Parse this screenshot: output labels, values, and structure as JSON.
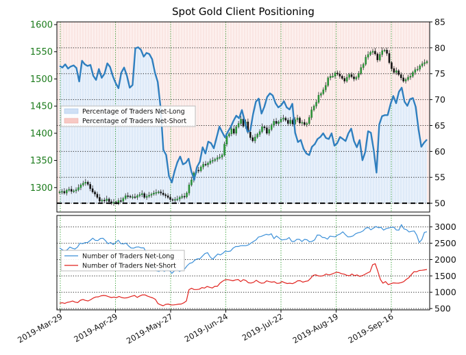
{
  "chart_data": [
    {
      "type": "line",
      "title": "Spot Gold Client Positioning",
      "left_axis": {
        "ticks": [
          1300,
          1350,
          1400,
          1450,
          1500,
          1550,
          1600
        ],
        "range": [
          1255,
          1605
        ],
        "color": "#1a7a1a"
      },
      "right_axis": {
        "ticks": [
          50,
          55,
          60,
          65,
          70,
          75,
          80,
          85
        ],
        "range": [
          48.3,
          85
        ]
      },
      "x_labels": [
        "2019-Mar-29",
        "2019-Apr-29",
        "2019-May-27",
        "2019-Jun-24",
        "2019-Jul-22",
        "2019-Aug-19",
        "2019-Sep-16"
      ],
      "legend": {
        "position": "upper-left",
        "entries": [
          "Percentage of Traders Net-Long",
          "Percentage of Traders Net-Short"
        ]
      },
      "reference_line": 50,
      "grid": true,
      "series": [
        {
          "name": "Percentage of Traders Net-Long",
          "color": "#2f7fbf",
          "values": [
            76.5,
            76.2,
            76.8,
            76.0,
            76.4,
            76.6,
            76.1,
            73.5,
            77.5,
            76.8,
            76.5,
            76.7,
            74.6,
            73.8,
            75.9,
            74.2,
            75.0,
            77.0,
            76.3,
            74.5,
            73.2,
            72.2,
            75.2,
            76.2,
            74.6,
            72.3,
            72.8,
            79.9,
            80.1,
            79.6,
            78.3,
            79.0,
            78.8,
            77.8,
            75.2,
            73.4,
            68.5,
            60.3,
            59.3,
            55.2,
            54.0,
            56.2,
            57.9,
            59.0,
            57.5,
            57.8,
            58.6,
            56.1,
            54.5,
            57.0,
            58.0,
            60.8,
            59.6,
            61.9,
            61.6,
            60.6,
            62.7,
            64.8,
            63.7,
            62.7,
            63.8,
            64.7,
            65.9,
            66.9,
            66.4,
            68.0,
            65.9,
            63.8,
            64.0,
            67.2,
            69.6,
            70.2,
            67.3,
            68.6,
            70.5,
            71.2,
            70.8,
            69.3,
            68.5,
            68.9,
            69.7,
            68.5,
            68.1,
            69.2,
            63.6,
            61.8,
            62.2,
            60.5,
            59.6,
            59.3,
            60.9,
            61.4,
            62.4,
            62.8,
            63.5,
            62.6,
            62.4,
            63.5,
            61.1,
            61.6,
            62.8,
            62.4,
            62.0,
            63.5,
            64.4,
            62.0,
            60.8,
            62.2,
            58.3,
            59.9,
            63.9,
            63.6,
            60.3,
            55.9,
            65.2,
            66.8,
            67.0,
            67.0,
            69.1,
            70.7,
            69.3,
            71.5,
            72.3,
            69.6,
            68.8,
            70.1,
            70.3,
            68.6,
            64.3,
            60.9,
            61.7,
            62.3
          ],
          "axis": "right"
        },
        {
          "name": "Spot Gold price (candlesticks)",
          "color": "#2e9a3b",
          "axis": "left",
          "values": [
            1292,
            1293,
            1290,
            1295,
            1297,
            1293,
            1294,
            1296,
            1300,
            1305,
            1308,
            1310,
            1306,
            1298,
            1292,
            1288,
            1282,
            1275,
            1277,
            1276,
            1279,
            1274,
            1271,
            1273,
            1272,
            1276,
            1275,
            1280,
            1285,
            1284,
            1283,
            1283,
            1282,
            1285,
            1287,
            1289,
            1282,
            1284,
            1286,
            1288,
            1290,
            1291,
            1292,
            1290,
            1287,
            1285,
            1282,
            1278,
            1277,
            1278,
            1279,
            1282,
            1284,
            1283,
            1290,
            1305,
            1314,
            1327,
            1332,
            1331,
            1338,
            1343,
            1342,
            1345,
            1349,
            1350,
            1352,
            1355,
            1356,
            1360,
            1380,
            1395,
            1399,
            1408,
            1400,
            1412,
            1418,
            1426,
            1413,
            1421,
            1402,
            1392,
            1386,
            1393,
            1398,
            1403,
            1412,
            1410,
            1400,
            1407,
            1415,
            1422,
            1418,
            1421,
            1426,
            1428,
            1424,
            1418,
            1424,
            1417,
            1425,
            1428,
            1419,
            1420,
            1416,
            1418,
            1429,
            1443,
            1450,
            1457,
            1470,
            1473,
            1480,
            1488,
            1502,
            1505,
            1505,
            1511,
            1509,
            1505,
            1501,
            1496,
            1503,
            1508,
            1504,
            1500,
            1503,
            1510,
            1521,
            1527,
            1540,
            1545,
            1549,
            1551,
            1546,
            1535,
            1545,
            1552,
            1553,
            1547,
            1530,
            1519,
            1512,
            1515,
            1508,
            1502,
            1496,
            1499,
            1503,
            1505,
            1512,
            1517,
            1518,
            1524,
            1528,
            1530,
            1532
          ]
        }
      ]
    },
    {
      "type": "line",
      "right_axis": {
        "ticks": [
          500,
          1000,
          1500,
          2000,
          2500,
          3000
        ],
        "range": [
          460,
          3350
        ]
      },
      "x_labels": [
        "2019-Mar-29",
        "2019-Apr-29",
        "2019-May-27",
        "2019-Jun-24",
        "2019-Jul-22",
        "2019-Aug-19",
        "2019-Sep-16"
      ],
      "legend": {
        "position": "upper-left",
        "entries": [
          "Number of Traders Net-Long",
          "Number of Traders Net-Short"
        ]
      },
      "grid": true,
      "series": [
        {
          "name": "Number of Traders Net-Long",
          "color": "#3a8fd8",
          "values": [
            2356,
            2303,
            2263,
            2301,
            2383,
            2347,
            2322,
            2383,
            2504,
            2485,
            2518,
            2522,
            2586,
            2655,
            2587,
            2582,
            2646,
            2653,
            2577,
            2482,
            2523,
            2459,
            2521,
            2591,
            2487,
            2477,
            2504,
            2418,
            2356,
            2350,
            2382,
            2386,
            2357,
            2360,
            2218,
            2042,
            1792,
            1737,
            1653,
            1637,
            1722,
            1635,
            1681,
            1670,
            1578,
            1651,
            1703,
            1634,
            1678,
            1712,
            1810,
            1884,
            1908,
            1983,
            2023,
            2024,
            2107,
            2185,
            2210,
            2083,
            2008,
            2092,
            2171,
            2142,
            2192,
            2260,
            2247,
            2261,
            2350,
            2397,
            2400,
            2425,
            2426,
            2424,
            2447,
            2503,
            2555,
            2603,
            2693,
            2709,
            2741,
            2775,
            2756,
            2789,
            2640,
            2722,
            2663,
            2600,
            2610,
            2621,
            2673,
            2556,
            2552,
            2622,
            2620,
            2552,
            2620,
            2604,
            2542,
            2559,
            2604,
            2751,
            2747,
            2677,
            2670,
            2625,
            2717,
            2707,
            2697,
            2752,
            2782,
            2849,
            2766,
            2694,
            2700,
            2724,
            2788,
            2820,
            2839,
            2879,
            2963,
            2984,
            2910,
            2960,
            3012,
            2975,
            2986,
            2901,
            2945,
            2967,
            2987,
            2991,
            2907,
            2902,
            3070,
            2937,
            2915,
            2845,
            2864,
            2874,
            2748,
            2522,
            2612,
            2832,
            2852
          ]
        },
        {
          "name": "Number of Traders Net-Short",
          "color": "#e0201c",
          "values": [
            663,
            677,
            657,
            690,
            705,
            731,
            697,
            681,
            754,
            779,
            749,
            732,
            772,
            822,
            853,
            858,
            889,
            902,
            892,
            862,
            838,
            852,
            834,
            871,
            837,
            822,
            828,
            854,
            881,
            900,
            842,
            886,
            918,
            918,
            880,
            851,
            827,
            783,
            654,
            615,
            586,
            627,
            637,
            611,
            610,
            621,
            635,
            637,
            676,
            732,
            1075,
            1121,
            1082,
            1083,
            1093,
            1141,
            1127,
            1179,
            1149,
            1128,
            1182,
            1183,
            1276,
            1337,
            1382,
            1385,
            1368,
            1349,
            1378,
            1390,
            1324,
            1385,
            1358,
            1290,
            1281,
            1305,
            1365,
            1313,
            1277,
            1283,
            1347,
            1324,
            1309,
            1321,
            1270,
            1276,
            1327,
            1291,
            1267,
            1277,
            1263,
            1296,
            1349,
            1352,
            1308,
            1332,
            1346,
            1421,
            1515,
            1534,
            1499,
            1493,
            1510,
            1558,
            1530,
            1546,
            1581,
            1612,
            1601,
            1566,
            1553,
            1520,
            1502,
            1557,
            1508,
            1530,
            1484,
            1508,
            1547,
            1591,
            1626,
            1840,
            1873,
            1643,
            1389,
            1277,
            1327,
            1235,
            1257,
            1285,
            1278,
            1276,
            1293,
            1322,
            1391,
            1445,
            1542,
            1628,
            1624,
            1664,
            1671,
            1683,
            1695
          ]
        }
      ]
    }
  ]
}
